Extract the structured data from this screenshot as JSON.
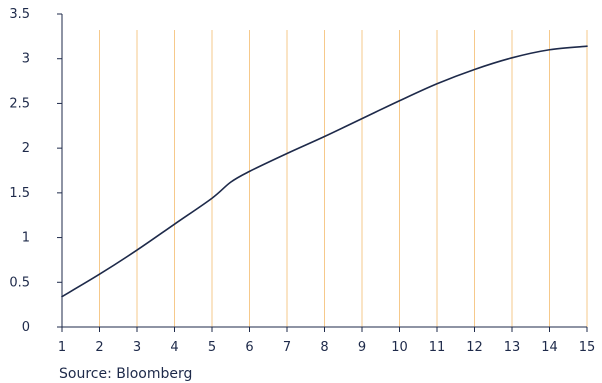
{
  "chart_data": {
    "type": "line",
    "x": [
      1,
      2,
      3,
      4,
      5,
      5.5,
      6,
      7,
      8,
      9,
      10,
      11,
      12,
      13,
      14,
      15
    ],
    "series": [
      {
        "values": [
          0.34,
          0.59,
          0.86,
          1.15,
          1.44,
          1.62,
          1.74,
          1.94,
          2.13,
          2.33,
          2.53,
          2.72,
          2.88,
          3.01,
          3.1,
          3.14
        ]
      }
    ],
    "xticks": [
      "1",
      "2",
      "3",
      "4",
      "5",
      "6",
      "7",
      "8",
      "9",
      "10",
      "11",
      "12",
      "13",
      "14",
      "15"
    ],
    "yticks": [
      "0",
      "0.5",
      "1",
      "1.5",
      "2",
      "2.5",
      "3",
      "3.5"
    ],
    "xlim": [
      1,
      15
    ],
    "ylim": [
      0,
      3.5
    ],
    "title": "",
    "xlabel": "",
    "ylabel": "",
    "grid": "vertical",
    "legend": "none",
    "colors": {
      "line": "#1e2a4a",
      "grid": "#f6c98b",
      "axis": "#1e2a4a"
    }
  },
  "source": "Source: Bloomberg"
}
